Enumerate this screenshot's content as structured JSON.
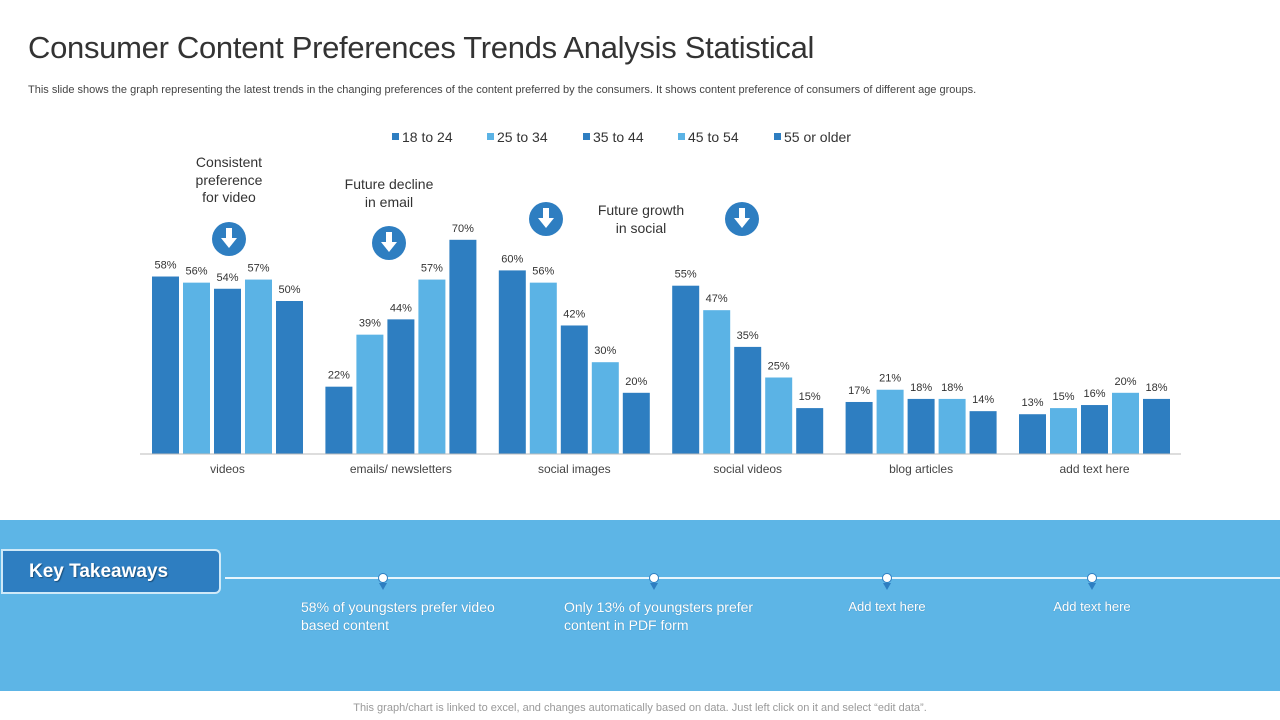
{
  "title": "Consumer Content Preferences Trends Analysis Statistical",
  "subtitle": "This slide shows the graph representing the latest trends in the changing preferences of the content preferred by the consumers. It shows content preference of consumers of different age groups.",
  "colors": {
    "dark": "#2e7ec1",
    "light": "#5bb3e5",
    "panel": "#5db5e6"
  },
  "chart_data": {
    "type": "bar",
    "categories": [
      "videos",
      "emails/ newsletters",
      "social images",
      "social videos",
      "blog articles",
      "add text here"
    ],
    "series": [
      {
        "name": "18 to 24",
        "color": "#2e7ec1",
        "values": [
          58,
          22,
          60,
          55,
          17,
          13
        ]
      },
      {
        "name": "25 to 34",
        "color": "#5bb3e5",
        "values": [
          56,
          39,
          56,
          47,
          21,
          15
        ]
      },
      {
        "name": "35 to 44",
        "color": "#2e7ec1",
        "values": [
          54,
          44,
          42,
          35,
          18,
          16
        ]
      },
      {
        "name": "45 to 54",
        "color": "#5bb3e5",
        "values": [
          57,
          57,
          30,
          25,
          18,
          20
        ]
      },
      {
        "name": "55 or older",
        "color": "#2e7ec1",
        "values": [
          50,
          70,
          20,
          15,
          14,
          18
        ]
      }
    ],
    "value_format": "%",
    "legend": "top",
    "grid": false,
    "annotations": [
      {
        "text": "Consistent preference for video",
        "icon": "arrow-down-circle-icon"
      },
      {
        "text": "Future decline in email",
        "icon": "arrow-down-circle-icon"
      },
      {
        "text": "Future growth in social",
        "icon": "arrow-down-circle-icon"
      }
    ]
  },
  "takeaways": {
    "heading": "Key Takeaways",
    "items": [
      "58% of youngsters prefer video based content",
      "Only 13% of youngsters prefer content in PDF form",
      "Add text here",
      "Add text here"
    ]
  },
  "footer": "This graph/chart is linked to excel, and changes automatically based on data. Just left click on it and select “edit data”."
}
